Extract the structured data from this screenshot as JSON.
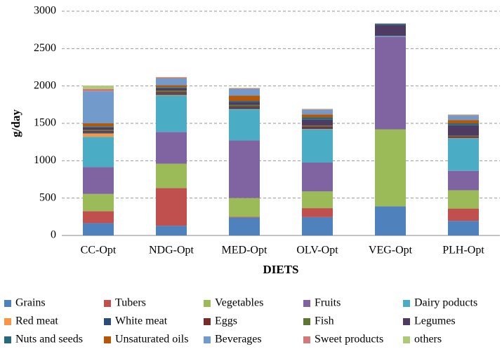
{
  "chart_data": {
    "type": "stacked_bar",
    "y_label": "g/day",
    "x_label": "DIETS",
    "categories": [
      "CC-Opt",
      "NDG-Opt",
      "MED-Opt",
      "OLV-Opt",
      "VEG-Opt",
      "PLH-Opt"
    ],
    "ylim": [
      0,
      3000
    ],
    "yticks": [
      0,
      500,
      1000,
      1500,
      2000,
      2500,
      3000
    ],
    "grid": true,
    "series": [
      {
        "name": "Grains",
        "color": "#4f81bd",
        "values": [
          165,
          130,
          240,
          245,
          390,
          195
        ]
      },
      {
        "name": "Tubers",
        "color": "#c0504d",
        "values": [
          160,
          505,
          10,
          120,
          0,
          165
        ]
      },
      {
        "name": "Vegetables",
        "color": "#9bbb59",
        "values": [
          230,
          325,
          250,
          225,
          1030,
          245
        ]
      },
      {
        "name": "Fruits",
        "color": "#8064a2",
        "values": [
          360,
          425,
          770,
          385,
          1240,
          260
        ]
      },
      {
        "name": "Dairy poducts",
        "color": "#4bacc6",
        "values": [
          405,
          485,
          415,
          445,
          10,
          430
        ]
      },
      {
        "name": "Red meat",
        "color": "#f79646",
        "values": [
          45,
          10,
          5,
          5,
          0,
          5
        ]
      },
      {
        "name": "White meat",
        "color": "#2c4d75",
        "values": [
          20,
          20,
          20,
          10,
          0,
          10
        ]
      },
      {
        "name": "Eggs",
        "color": "#772c2a",
        "values": [
          15,
          20,
          15,
          25,
          0,
          15
        ]
      },
      {
        "name": "Fish",
        "color": "#5f7530",
        "values": [
          15,
          20,
          20,
          10,
          0,
          10
        ]
      },
      {
        "name": "Legumes",
        "color": "#4d3b62",
        "values": [
          30,
          30,
          40,
          80,
          150,
          140
        ]
      },
      {
        "name": "Nuts and seeds",
        "color": "#276a7c",
        "values": [
          15,
          15,
          15,
          30,
          15,
          25
        ]
      },
      {
        "name": "Unsaturated oils",
        "color": "#b65708",
        "values": [
          40,
          25,
          70,
          40,
          0,
          45
        ]
      },
      {
        "name": "Beverages",
        "color": "#729aca",
        "values": [
          430,
          90,
          90,
          60,
          0,
          60
        ]
      },
      {
        "name": "Sweet products",
        "color": "#d07b79",
        "values": [
          30,
          15,
          10,
          10,
          0,
          10
        ]
      },
      {
        "name": "others",
        "color": "#afc97a",
        "values": [
          45,
          5,
          5,
          5,
          0,
          5
        ]
      }
    ]
  }
}
